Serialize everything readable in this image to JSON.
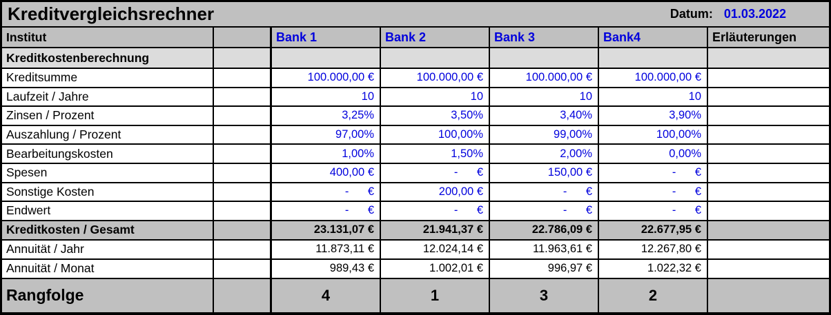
{
  "title_bar": {
    "title": "Kreditvergleichsrechner",
    "date_label": "Datum:",
    "date_value": "01.03.2022"
  },
  "columns": {
    "institut": "Institut",
    "banks": [
      "Bank 1",
      "Bank 2",
      "Bank 3",
      "Bank4"
    ],
    "notes": "Erläuterungen"
  },
  "section_header": "Kreditkostenberechnung",
  "input_rows": [
    {
      "label": "Kreditsumme",
      "values": [
        "100.000,00 €",
        "100.000,00 €",
        "100.000,00 €",
        "100.000,00 €"
      ]
    },
    {
      "label": "Laufzeit / Jahre",
      "values": [
        "10",
        "10",
        "10",
        "10"
      ]
    },
    {
      "label": "Zinsen / Prozent",
      "values": [
        "3,25%",
        "3,50%",
        "3,40%",
        "3,90%"
      ]
    },
    {
      "label": "Auszahlung / Prozent",
      "values": [
        "97,00%",
        "100,00%",
        "99,00%",
        "100,00%"
      ]
    },
    {
      "label": "Bearbeitungskosten",
      "values": [
        "1,00%",
        "1,50%",
        "2,00%",
        "0,00%"
      ]
    },
    {
      "label": "Spesen",
      "values": [
        "400,00 €",
        "-      €",
        "150,00 €",
        "-      €"
      ]
    },
    {
      "label": "Sonstige Kosten",
      "values": [
        "-      €",
        "200,00 €",
        "-      €",
        "-      €"
      ]
    },
    {
      "label": "Endwert",
      "values": [
        "-      €",
        "-      €",
        "-      €",
        "-      €"
      ]
    }
  ],
  "total_row": {
    "label": "Kreditkosten / Gesamt",
    "values": [
      "23.131,07 €",
      "21.941,37 €",
      "22.786,09 €",
      "22.677,95 €"
    ]
  },
  "result_rows": [
    {
      "label": "Annuität / Jahr",
      "values": [
        "11.873,11 €",
        "12.024,14 €",
        "11.963,61 €",
        "12.267,80 €"
      ]
    },
    {
      "label": "Annuität / Monat",
      "values": [
        "989,43 €",
        "1.002,01 €",
        "996,97 €",
        "1.022,32 €"
      ]
    }
  ],
  "rank_row": {
    "label": "Rangfolge",
    "values": [
      "4",
      "1",
      "3",
      "2"
    ]
  },
  "colors": {
    "header_gray": "#c0c0c0",
    "section_gray": "#dcdcdc",
    "value_blue": "#0000dd",
    "border_black": "#000000"
  }
}
